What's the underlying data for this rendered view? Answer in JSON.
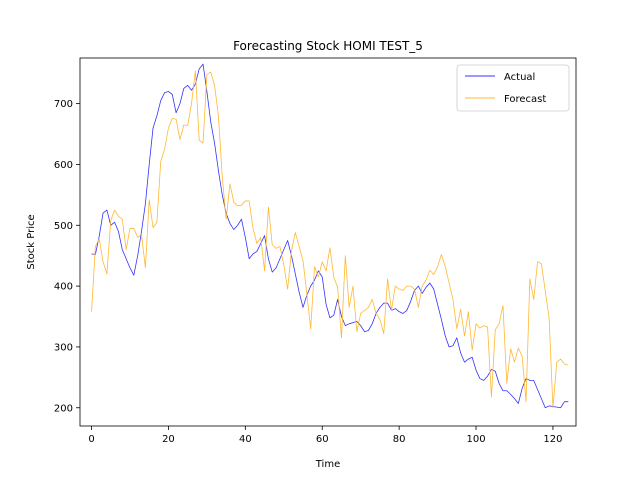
{
  "chart_data": {
    "type": "line",
    "title": "Forecasting Stock HOMI TEST_5",
    "xlabel": "Time",
    "ylabel": "Stock Price",
    "xlim": [
      -3,
      126
    ],
    "ylim": [
      170,
      775
    ],
    "xticks": [
      0,
      20,
      40,
      60,
      80,
      100,
      120
    ],
    "yticks": [
      200,
      300,
      400,
      500,
      600,
      700
    ],
    "grid": false,
    "legend_position": "top-right",
    "series": [
      {
        "name": "Actual",
        "color": "#3333ff",
        "values": [
          453,
          452,
          482,
          520,
          525,
          500,
          505,
          490,
          460,
          445,
          430,
          418,
          450,
          490,
          535,
          600,
          660,
          680,
          705,
          718,
          720,
          715,
          685,
          700,
          725,
          730,
          722,
          732,
          757,
          765,
          720,
          670,
          635,
          590,
          550,
          520,
          503,
          493,
          500,
          510,
          480,
          445,
          453,
          457,
          470,
          483,
          445,
          423,
          430,
          445,
          460,
          475,
          450,
          420,
          390,
          365,
          385,
          400,
          410,
          425,
          415,
          370,
          348,
          352,
          378,
          350,
          335,
          338,
          340,
          342,
          335,
          325,
          327,
          338,
          355,
          365,
          372,
          372,
          360,
          363,
          358,
          355,
          360,
          375,
          393,
          400,
          388,
          398,
          405,
          395,
          370,
          345,
          318,
          300,
          302,
          315,
          290,
          275,
          280,
          283,
          262,
          248,
          245,
          252,
          263,
          260,
          240,
          228,
          228,
          222,
          215,
          207,
          232,
          248,
          245,
          245,
          230,
          215,
          200,
          203,
          202,
          201,
          200,
          210,
          210
        ]
      },
      {
        "name": "Forecast",
        "color": "#ffb833",
        "values": [
          358,
          465,
          478,
          440,
          420,
          508,
          525,
          515,
          510,
          460,
          495,
          495,
          480,
          485,
          430,
          542,
          496,
          505,
          605,
          625,
          660,
          676,
          674,
          641,
          665,
          664,
          700,
          754,
          640,
          635,
          748,
          752,
          730,
          680,
          580,
          510,
          568,
          538,
          532,
          533,
          540,
          540,
          495,
          470,
          480,
          425,
          530,
          468,
          462,
          465,
          435,
          395,
          458,
          488,
          465,
          442,
          387,
          330,
          432,
          415,
          440,
          425,
          463,
          415,
          398,
          315,
          450,
          365,
          400,
          325,
          355,
          360,
          365,
          378,
          355,
          345,
          322,
          412,
          360,
          400,
          395,
          393,
          400,
          400,
          395,
          365,
          400,
          410,
          426,
          419,
          432,
          452,
          432,
          405,
          378,
          330,
          362,
          318,
          358,
          295,
          338,
          331,
          335,
          333,
          218,
          328,
          338,
          368,
          240,
          297,
          275,
          298,
          285,
          210,
          412,
          378,
          440,
          437,
          392,
          348,
          200,
          275,
          280,
          272,
          270
        ]
      }
    ]
  }
}
